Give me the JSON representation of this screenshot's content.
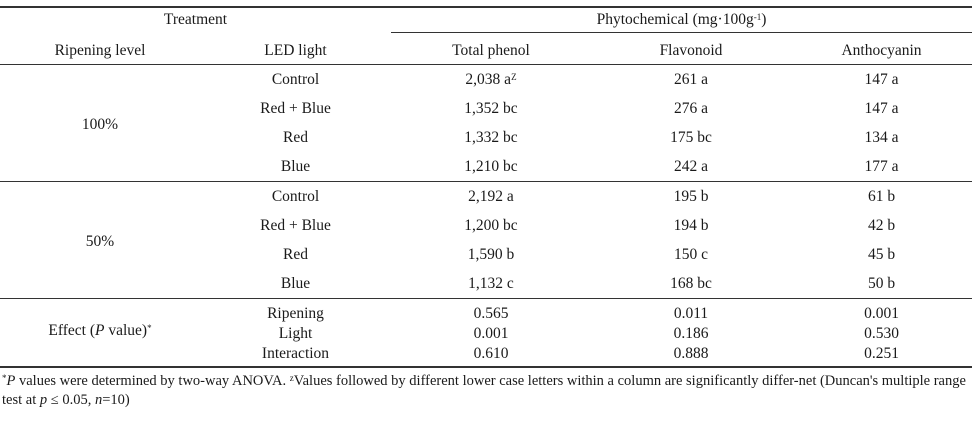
{
  "header": {
    "treatment": "Treatment",
    "phytochemical": "Phytochemical (mg·100g",
    "phytochemical_sup": "-1",
    "phytochemical_close": ")",
    "ripening_level": "Ripening level",
    "led_light": "LED light",
    "total_phenol": "Total phenol",
    "flavonoid": "Flavonoid",
    "anthocyanin": "Anthocyanin"
  },
  "groups": [
    {
      "level": "100%",
      "rows": [
        {
          "light": "Control",
          "phenol": "2,038 a",
          "phenol_sup": "Z",
          "flavonoid": "261 a",
          "anthocyanin": "147 a"
        },
        {
          "light": "Red + Blue",
          "phenol": "1,352 bc",
          "phenol_sup": "",
          "flavonoid": "276 a",
          "anthocyanin": "147 a"
        },
        {
          "light": "Red",
          "phenol": "1,332 bc",
          "phenol_sup": "",
          "flavonoid": "175 bc",
          "anthocyanin": "134 a"
        },
        {
          "light": "Blue",
          "phenol": "1,210 bc",
          "phenol_sup": "",
          "flavonoid": "242 a",
          "anthocyanin": "177 a"
        }
      ]
    },
    {
      "level": "50%",
      "rows": [
        {
          "light": "Control",
          "phenol": "2,192 a",
          "phenol_sup": "",
          "flavonoid": "195 b",
          "anthocyanin": "61 b"
        },
        {
          "light": "Red + Blue",
          "phenol": "1,200 bc",
          "phenol_sup": "",
          "flavonoid": "194 b",
          "anthocyanin": "42 b"
        },
        {
          "light": "Red",
          "phenol": "1,590 b",
          "phenol_sup": "",
          "flavonoid": "150 c",
          "anthocyanin": "45 b"
        },
        {
          "light": "Blue",
          "phenol": "1,132 c",
          "phenol_sup": "",
          "flavonoid": "168 bc",
          "anthocyanin": "50 b"
        }
      ]
    }
  ],
  "effect": {
    "label_pre": "Effect (",
    "label_p": "P",
    "label_post": " value)",
    "label_sup": "*",
    "rows": [
      {
        "factor": "Ripening",
        "phenol": "0.565",
        "flavonoid": "0.011",
        "anthocyanin": "0.001"
      },
      {
        "factor": "Light",
        "phenol": "0.001",
        "flavonoid": "0.186",
        "anthocyanin": "0.530"
      },
      {
        "factor": "Interaction",
        "phenol": "0.610",
        "flavonoid": "0.888",
        "anthocyanin": "0.251"
      }
    ]
  },
  "footnote": {
    "star": "*",
    "p": "P",
    "part1": " values were determined by two-way ANOVA. ",
    "z": "z",
    "part2": "Values followed by different lower case letters within a column are significantly differ-net (Duncan's multiple range test at ",
    "p_italic": "p",
    "part3": " ≤ 0.05, ",
    "n_italic": "n",
    "part4": "=10)"
  }
}
